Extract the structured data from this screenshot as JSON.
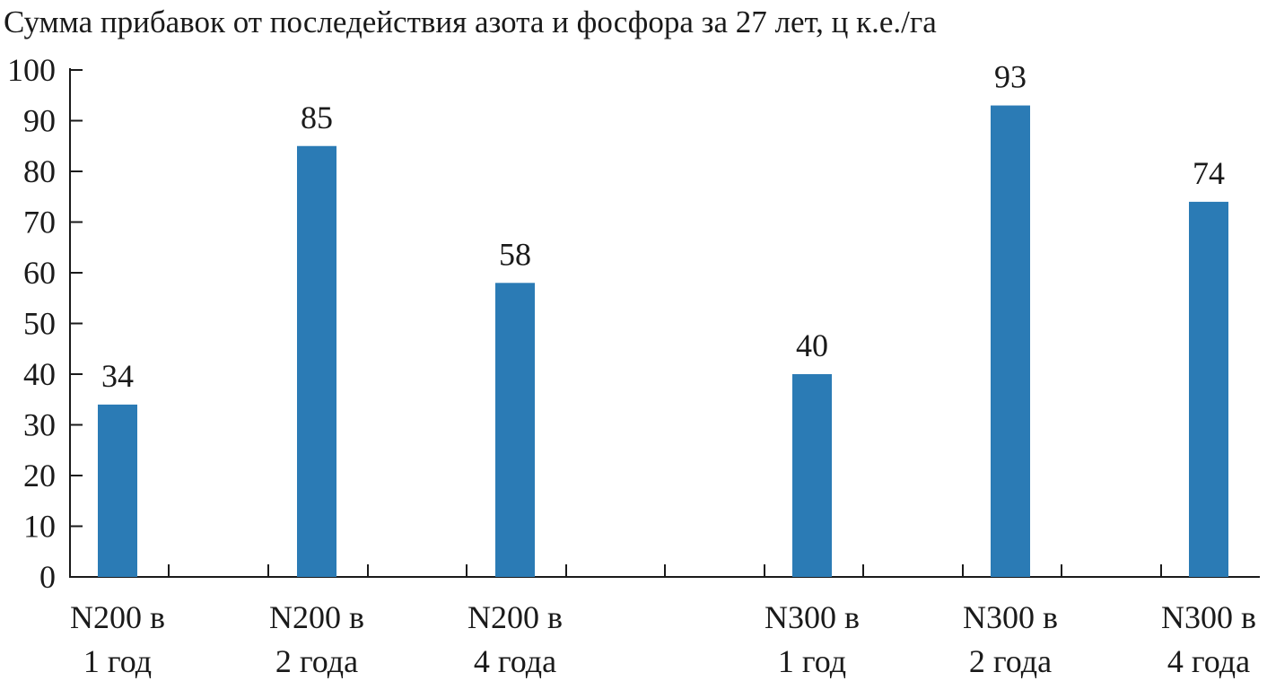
{
  "chart_data": {
    "type": "bar",
    "title": "Сумма прибавок от последействия азота и фосфора за 27 лет, ц к.е./га",
    "xlabel": "",
    "ylabel": "",
    "ylim": [
      0,
      100
    ],
    "yticks": [
      0,
      10,
      20,
      30,
      40,
      50,
      60,
      70,
      80,
      90,
      100
    ],
    "categories": [
      [
        "N200 в",
        "1 год"
      ],
      [
        "N200 в",
        "2 года"
      ],
      [
        "N200 в",
        "4 года"
      ],
      [
        "N300 в",
        "1 год"
      ],
      [
        "N300 в",
        "2 года"
      ],
      [
        "N300 в",
        "4 года"
      ]
    ],
    "values": [
      34,
      85,
      58,
      40,
      93,
      74
    ],
    "data_labels": [
      "34",
      "85",
      "58",
      "40",
      "93",
      "74"
    ],
    "bar_color": "#2b7bb5",
    "axis_color": "#1a1a1a",
    "grid": false,
    "legend": "none"
  }
}
